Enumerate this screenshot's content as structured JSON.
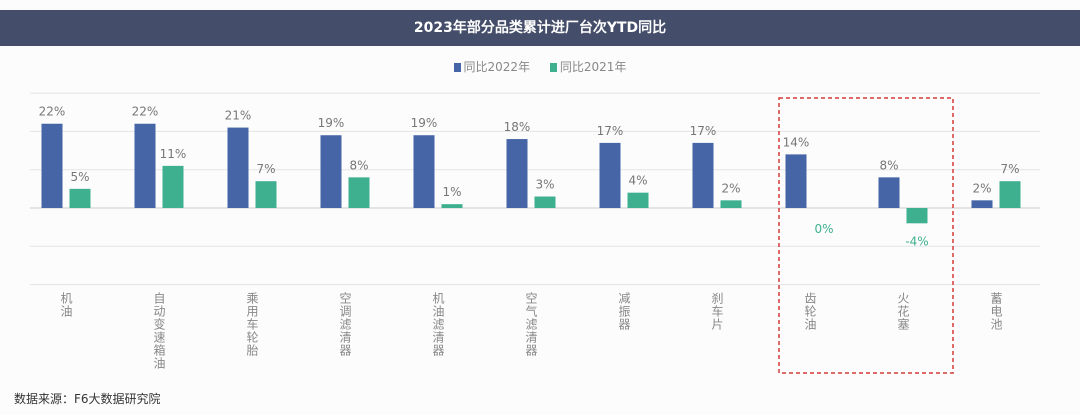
{
  "title": "2023年部分品类累计进厂台次YTD同比",
  "source": "数据来源：F6大数据研究院",
  "watermark": "F6大数据研究院",
  "colors": {
    "series1": "#4565a6",
    "series2": "#3fb08f",
    "highlight_box": "#d43a3a",
    "title_bg": "#444d69"
  },
  "highlight": [
    "齿轮油",
    "火花塞"
  ],
  "chart_data": {
    "type": "bar",
    "title": "2023年部分品类累计进厂台次YTD同比",
    "categories": [
      "机油",
      "自动变速箱油",
      "乘用车轮胎",
      "空调滤清器",
      "机油滤清器",
      "空气滤清器",
      "减振器",
      "刹车片",
      "齿轮油",
      "火花塞",
      "蓄电池"
    ],
    "series": [
      {
        "name": "同比2022年",
        "values": [
          22,
          22,
          21,
          19,
          19,
          18,
          17,
          17,
          14,
          8,
          2
        ],
        "labels": [
          "22%",
          "22%",
          "21%",
          "19%",
          "19%",
          "18%",
          "17%",
          "17%",
          "14%",
          "8%",
          "2%"
        ]
      },
      {
        "name": "同比2021年",
        "values": [
          5,
          11,
          7,
          8,
          1,
          3,
          4,
          2,
          0,
          -4,
          7
        ],
        "labels": [
          "5%",
          "11%",
          "7%",
          "8%",
          "1%",
          "3%",
          "4%",
          "2%",
          "0%",
          "-4%",
          "7%"
        ]
      }
    ],
    "ylim": [
      -20,
      30
    ],
    "grid": true,
    "legend": "top-center",
    "xlabel": "",
    "ylabel": ""
  }
}
